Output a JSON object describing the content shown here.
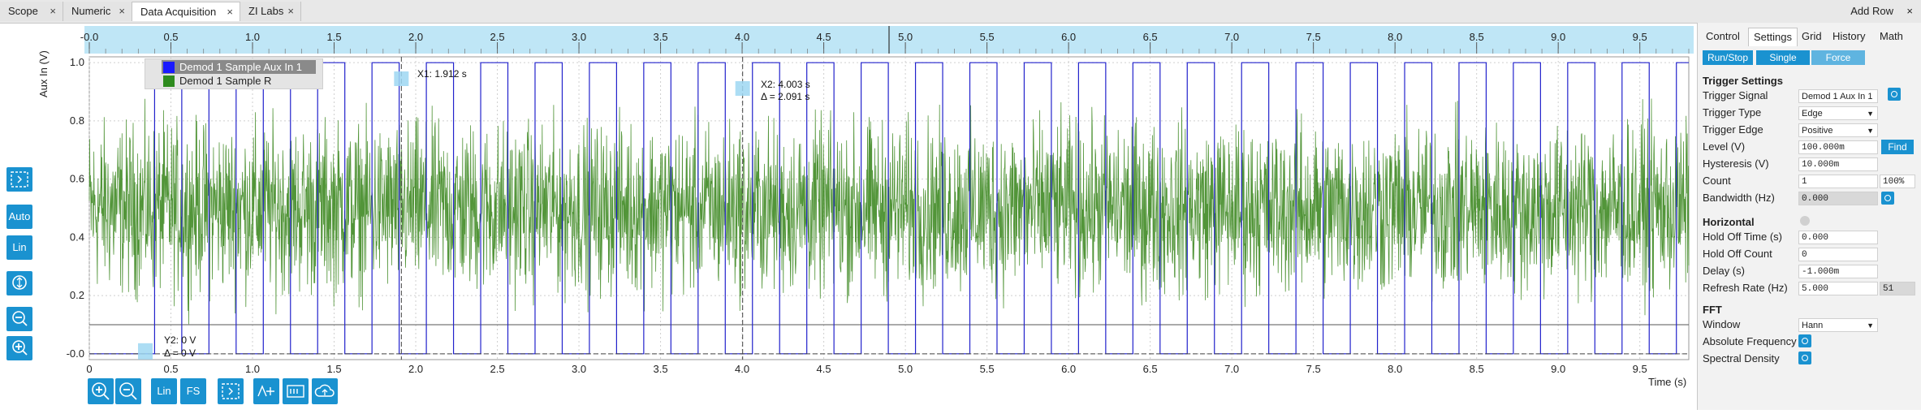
{
  "tabs": [
    {
      "label": "Scope"
    },
    {
      "label": "Numeric"
    },
    {
      "label": "Data Acquisition"
    },
    {
      "label": "ZI Labs"
    }
  ],
  "add_row": "Add Row",
  "close_glyph": "×",
  "plot": {
    "ylabel": "Aux In (V)",
    "xlabel": "Time (s)",
    "top_axis_ticks": [
      "-0.0",
      "0.5",
      "1.0",
      "1.5",
      "2.0",
      "2.5",
      "3.0",
      "3.5",
      "4.0",
      "4.5",
      "5.0",
      "5.5",
      "6.0",
      "6.5",
      "7.0",
      "7.5",
      "8.0",
      "8.5",
      "9.0",
      "9.5"
    ],
    "bottom_axis_ticks": [
      "0",
      "0.5",
      "1.0",
      "1.5",
      "2.0",
      "2.5",
      "3.0",
      "3.5",
      "4.0",
      "4.5",
      "5.0",
      "5.5",
      "6.0",
      "6.5",
      "7.0",
      "7.5",
      "8.0",
      "8.5",
      "9.0",
      "9.5"
    ],
    "y_ticks": [
      "1.0",
      "0.8",
      "0.6",
      "0.4",
      "0.2",
      "-0.0"
    ],
    "legend": [
      {
        "name": "Demod 1 Sample Aux In 1",
        "color": "#1a1aff"
      },
      {
        "name": "Demod 1 Sample R",
        "color": "#2e8b1e"
      }
    ],
    "cursors": {
      "x1": "X1: 1.912 s",
      "x2": "X2: 4.003 s",
      "x_delta": "Δ = 2.091 s",
      "y2": "Y2: 0 V",
      "y_delta": "Δ = 0 V"
    }
  },
  "chart_data": {
    "type": "line",
    "xlabel": "Time (s)",
    "ylabel": "Aux In (V)",
    "xlim": [
      0,
      9.8
    ],
    "ylim": [
      -0.02,
      1.02
    ],
    "grid": true,
    "legend_position": "top-left",
    "series": [
      {
        "name": "Demod 1 Sample Aux In 1",
        "description_kind": "square wave 0 to 1.0 V",
        "period_s": 0.333,
        "low": 0.0,
        "high": 1.0
      },
      {
        "name": "Demod 1 Sample R",
        "description_kind": "noisy signal",
        "mean": 0.5,
        "min": 0.1,
        "max": 0.93
      }
    ]
  },
  "side_buttons": [
    {
      "label": ""
    },
    {
      "label": "Auto"
    },
    {
      "label": "Lin"
    },
    {
      "label": ""
    },
    {
      "label": ""
    },
    {
      "label": ""
    }
  ],
  "bottom_buttons": [
    {
      "label": ""
    },
    {
      "label": ""
    },
    {
      "label": "Lin"
    },
    {
      "label": "FS"
    },
    {
      "label": ""
    },
    {
      "label": ""
    },
    {
      "label": ""
    },
    {
      "label": ""
    }
  ],
  "panel": {
    "tabs": [
      "Control",
      "Settings",
      "Grid",
      "History",
      "Math"
    ],
    "buttons": [
      "Run/Stop",
      "Single",
      "Force"
    ],
    "trigger_settings": "Trigger Settings",
    "trigger_signal_label": "Trigger Signal",
    "trigger_signal_value": "Demod 1 Aux In 1",
    "trigger_type_label": "Trigger Type",
    "trigger_type_value": "Edge",
    "trigger_edge_label": "Trigger Edge",
    "trigger_edge_value": "Positive",
    "level_label": "Level (V)",
    "level_value": "100.000m",
    "find_label": "Find",
    "hysteresis_label": "Hysteresis (V)",
    "hysteresis_value": "10.000m",
    "count_label": "Count",
    "count_value": "1",
    "count_pct": "100%",
    "bandwidth_label": "Bandwidth (Hz)",
    "bandwidth_value": "0.000",
    "horizontal": "Horizontal",
    "hold_off_time_label": "Hold Off Time (s)",
    "hold_off_time_value": "0.000",
    "hold_off_count_label": "Hold Off Count",
    "hold_off_count_value": "0",
    "delay_label": "Delay (s)",
    "delay_value": "-1.000m",
    "refresh_label": "Refresh Rate (Hz)",
    "refresh_value": "5.000",
    "refresh_extra": "51",
    "fft": "FFT",
    "window_label": "Window",
    "window_value": "Hann",
    "abs_freq_label": "Absolute Frequency",
    "spectral_density_label": "Spectral Density"
  }
}
